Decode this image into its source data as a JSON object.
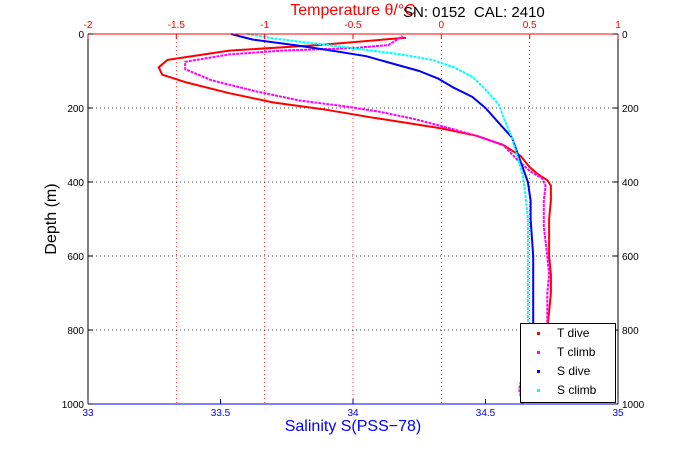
{
  "header": {
    "sn_cal": "SN: 0152  CAL: 2410"
  },
  "colors": {
    "t_dive": "#ff0000",
    "t_climb": "#ff00ff",
    "s_dive": "#0000ff",
    "s_climb": "#00ffff",
    "top_axis": "#ff0000",
    "bottom_axis": "#0000ff",
    "left_axis": "#000000"
  },
  "legend": [
    {
      "label": "T dive",
      "color": "#ff0000"
    },
    {
      "label": "T climb",
      "color": "#ff00ff"
    },
    {
      "label": "S dive",
      "color": "#0000ff"
    },
    {
      "label": "S climb",
      "color": "#00ffff"
    }
  ],
  "chart_data": {
    "type": "line",
    "title": "Temperature θ/°C",
    "xlabel": "Salinity S(PSS−78)",
    "ylabel": "Depth (m)",
    "x_top": {
      "label": "Temperature θ/°C",
      "range": [
        -2,
        1
      ],
      "ticks": [
        "-2",
        "-1.5",
        "-1",
        "-0.5",
        "0",
        "0.5",
        "1"
      ]
    },
    "x_bottom": {
      "label": "Salinity S(PSS−78)",
      "range": [
        33,
        35
      ],
      "ticks": [
        "33",
        "33.5",
        "34",
        "34.5",
        "35"
      ]
    },
    "y": {
      "label": "Depth (m)",
      "range": [
        0,
        1000
      ],
      "reversed": true,
      "ticks": [
        "0",
        "200",
        "400",
        "600",
        "800",
        "1000"
      ]
    },
    "grid": true,
    "legend_position": "bottom-right",
    "series": [
      {
        "name": "T dive",
        "axis": "temperature",
        "color": "#ff0000",
        "points": [
          [
            -0.2,
            10
          ],
          [
            -0.7,
            30
          ],
          [
            -1.2,
            45
          ],
          [
            -1.55,
            70
          ],
          [
            -1.6,
            90
          ],
          [
            -1.58,
            110
          ],
          [
            -1.45,
            130
          ],
          [
            -1.2,
            160
          ],
          [
            -0.95,
            185
          ],
          [
            -0.65,
            205
          ],
          [
            -0.4,
            225
          ],
          [
            -0.2,
            240
          ],
          [
            0,
            255
          ],
          [
            0.2,
            275
          ],
          [
            0.35,
            300
          ],
          [
            0.45,
            330
          ],
          [
            0.5,
            360
          ],
          [
            0.55,
            380
          ],
          [
            0.6,
            395
          ],
          [
            0.62,
            410
          ],
          [
            0.62,
            450
          ],
          [
            0.61,
            500
          ],
          [
            0.61,
            600
          ],
          [
            0.62,
            650
          ],
          [
            0.62,
            700
          ],
          [
            0.61,
            750
          ],
          [
            0.6,
            800
          ],
          [
            0.57,
            850
          ],
          [
            0.55,
            880
          ]
        ]
      },
      {
        "name": "T climb",
        "axis": "temperature",
        "color": "#ff00ff",
        "points": [
          [
            0.46,
            1000
          ],
          [
            0.45,
            980
          ],
          [
            0.44,
            960
          ],
          [
            0.45,
            940
          ],
          [
            0.47,
            900
          ],
          [
            0.58,
            800
          ],
          [
            0.6,
            780
          ],
          [
            0.6,
            700
          ],
          [
            0.61,
            650
          ],
          [
            0.6,
            600
          ],
          [
            0.58,
            520
          ],
          [
            0.58,
            450
          ],
          [
            0.59,
            410
          ],
          [
            0.57,
            390
          ],
          [
            0.5,
            370
          ],
          [
            0.43,
            340
          ],
          [
            0.35,
            300
          ],
          [
            0.2,
            275
          ],
          [
            0.05,
            255
          ],
          [
            -0.15,
            230
          ],
          [
            -0.35,
            210
          ],
          [
            -0.55,
            195
          ],
          [
            -0.8,
            180
          ],
          [
            -1.05,
            155
          ],
          [
            -1.3,
            125
          ],
          [
            -1.45,
            95
          ],
          [
            -1.45,
            75
          ],
          [
            -1.2,
            55
          ],
          [
            -0.9,
            45
          ],
          [
            -0.5,
            38
          ],
          [
            -0.3,
            30
          ],
          [
            -0.25,
            15
          ],
          [
            -0.22,
            5
          ]
        ]
      },
      {
        "name": "S dive",
        "axis": "salinity",
        "color": "#0000ff",
        "points": [
          [
            33.54,
            0
          ],
          [
            33.62,
            15
          ],
          [
            33.78,
            30
          ],
          [
            33.92,
            45
          ],
          [
            34.05,
            60
          ],
          [
            34.15,
            80
          ],
          [
            34.25,
            100
          ],
          [
            34.32,
            120
          ],
          [
            34.38,
            145
          ],
          [
            34.45,
            170
          ],
          [
            34.5,
            200
          ],
          [
            34.55,
            240
          ],
          [
            34.6,
            280
          ],
          [
            34.62,
            320
          ],
          [
            34.64,
            360
          ],
          [
            34.66,
            400
          ],
          [
            34.67,
            450
          ],
          [
            34.67,
            500
          ],
          [
            34.68,
            600
          ],
          [
            34.68,
            700
          ],
          [
            34.68,
            800
          ]
        ]
      },
      {
        "name": "S climb",
        "axis": "salinity",
        "color": "#00ffff",
        "points": [
          [
            34.66,
            800
          ],
          [
            34.66,
            700
          ],
          [
            34.66,
            600
          ],
          [
            34.66,
            500
          ],
          [
            34.65,
            430
          ],
          [
            34.64,
            380
          ],
          [
            34.62,
            330
          ],
          [
            34.6,
            280
          ],
          [
            34.57,
            230
          ],
          [
            34.55,
            190
          ],
          [
            34.5,
            150
          ],
          [
            34.45,
            115
          ],
          [
            34.38,
            90
          ],
          [
            34.3,
            70
          ],
          [
            34.18,
            55
          ],
          [
            34.02,
            40
          ],
          [
            33.85,
            25
          ],
          [
            33.7,
            12
          ],
          [
            33.6,
            0
          ]
        ]
      }
    ]
  }
}
